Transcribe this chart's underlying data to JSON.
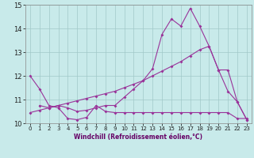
{
  "xlabel": "Windchill (Refroidissement éolien,°C)",
  "xlim": [
    -0.5,
    23.5
  ],
  "ylim": [
    10,
    15
  ],
  "yticks": [
    10,
    11,
    12,
    13,
    14,
    15
  ],
  "xticks": [
    0,
    1,
    2,
    3,
    4,
    5,
    6,
    7,
    8,
    9,
    10,
    11,
    12,
    13,
    14,
    15,
    16,
    17,
    18,
    19,
    20,
    21,
    22,
    23
  ],
  "bg_color": "#c8eaea",
  "grid_color": "#a0c8c8",
  "line_color": "#993399",
  "line1_x": [
    0,
    1,
    2,
    3,
    4,
    5,
    6,
    7,
    8,
    9,
    10,
    11,
    12,
    13,
    14,
    15,
    16,
    17,
    18,
    19,
    20,
    21,
    22,
    23
  ],
  "line1_y": [
    12.0,
    11.45,
    10.75,
    10.65,
    10.2,
    10.15,
    10.25,
    10.75,
    10.5,
    10.45,
    10.45,
    10.45,
    10.45,
    10.45,
    10.45,
    10.45,
    10.45,
    10.45,
    10.45,
    10.45,
    10.45,
    10.45,
    10.2,
    10.2
  ],
  "line2_x": [
    1,
    2,
    3,
    4,
    5,
    6,
    7,
    8,
    9,
    10,
    11,
    12,
    13,
    14,
    15,
    16,
    17,
    18,
    19,
    20,
    21,
    22,
    23
  ],
  "line2_y": [
    10.75,
    10.65,
    10.75,
    10.65,
    10.5,
    10.55,
    10.65,
    10.75,
    10.75,
    11.1,
    11.45,
    11.8,
    12.3,
    13.75,
    14.4,
    14.1,
    14.85,
    14.1,
    13.25,
    12.25,
    12.25,
    10.9,
    10.15
  ],
  "line3_x": [
    0,
    1,
    2,
    3,
    4,
    5,
    6,
    7,
    8,
    9,
    10,
    11,
    12,
    13,
    14,
    15,
    16,
    17,
    18,
    19,
    20,
    21,
    22,
    23
  ],
  "line3_y": [
    10.45,
    10.55,
    10.65,
    10.75,
    10.85,
    10.95,
    11.05,
    11.15,
    11.25,
    11.35,
    11.5,
    11.65,
    11.8,
    12.0,
    12.2,
    12.4,
    12.6,
    12.85,
    13.1,
    13.25,
    12.25,
    11.35,
    10.9,
    10.15
  ]
}
